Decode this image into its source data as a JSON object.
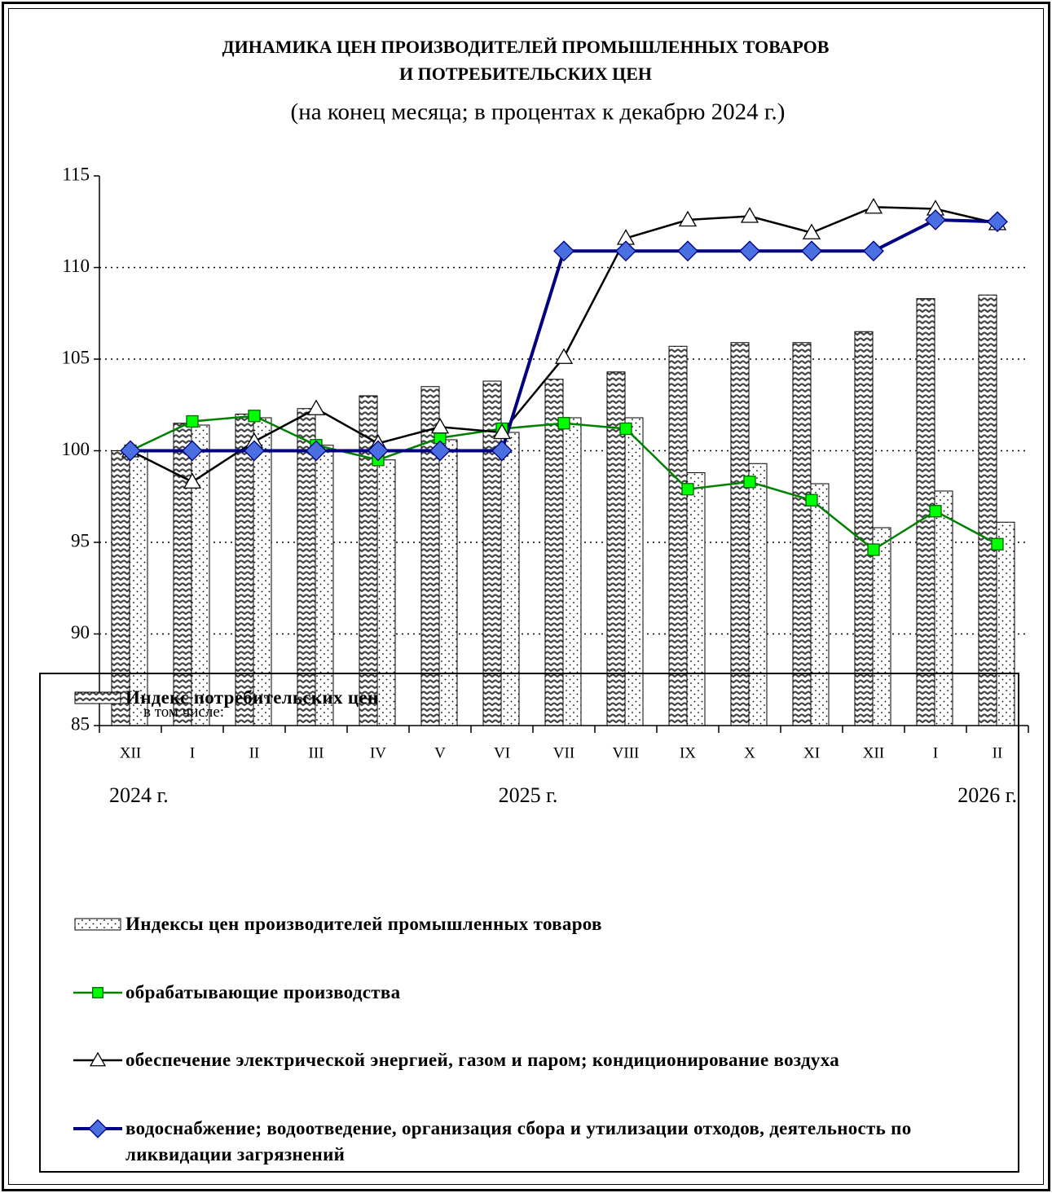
{
  "chart_data": {
    "type": "combo",
    "title": [
      "ДИНАМИКА  ЦЕН  ПРОИЗВОДИТЕЛЕЙ  ПРОМЫШЛЕННЫХ ТОВАРОВ",
      "И  ПОТРЕБИТЕЛЬСКИХ  ЦЕН"
    ],
    "subtitle": "(на конец месяца; в процентах к декабрю 2024 г.)",
    "categories": [
      "XII",
      "I",
      "II",
      "III",
      "IV",
      "V",
      "VI",
      "VII",
      "VIII",
      "IX",
      "X",
      "XI",
      "XII",
      "I",
      "II"
    ],
    "year_labels": [
      "2024 г.",
      "2025 г.",
      "2026 г."
    ],
    "legend_note": "в том числе:",
    "ylim": [
      85,
      115
    ],
    "yticks": [
      85,
      90,
      95,
      100,
      105,
      110,
      115
    ],
    "grid": true,
    "series": [
      {
        "name": "Индекс потребительских цен",
        "type": "bar",
        "pattern": "wave",
        "color": "#444444",
        "values": [
          100.0,
          101.5,
          102.0,
          102.3,
          103.0,
          103.5,
          103.8,
          103.9,
          104.3,
          105.7,
          105.9,
          105.9,
          106.5,
          108.3,
          108.5
        ]
      },
      {
        "name": "Индексы цен производителей промышленных товаров",
        "type": "bar",
        "pattern": "dots",
        "color": "#000000",
        "values": [
          100.0,
          101.4,
          101.8,
          100.3,
          99.5,
          100.6,
          101.0,
          101.8,
          101.8,
          98.8,
          99.3,
          98.2,
          95.8,
          97.8,
          96.1
        ]
      },
      {
        "name": "обрабатывающие производства",
        "type": "line",
        "marker": "square",
        "color": "#008000",
        "marker_color": "#00ff00",
        "values": [
          100.0,
          101.6,
          101.9,
          100.3,
          99.5,
          100.7,
          101.2,
          101.5,
          101.2,
          97.9,
          98.3,
          97.3,
          94.6,
          96.7,
          94.9
        ]
      },
      {
        "name": "обеспечение электрической энергией, газом и паром; кондиционирование воздуха",
        "type": "line",
        "marker": "triangle",
        "color": "#000000",
        "marker_color": "#ffffff",
        "values": [
          100.0,
          98.3,
          100.5,
          102.3,
          100.4,
          101.3,
          101.0,
          105.1,
          111.6,
          112.6,
          112.8,
          111.9,
          113.3,
          113.2,
          112.4
        ]
      },
      {
        "name": "водоснабжение; водоотведение, организация сбора и утилизации отходов, деятельность по ликвидации загрязнений",
        "type": "line",
        "marker": "diamond",
        "color": "#000080",
        "marker_color": "#4a6fe0",
        "values": [
          100.0,
          100.0,
          100.0,
          100.0,
          100.0,
          100.0,
          100.0,
          110.9,
          110.9,
          110.9,
          110.9,
          110.9,
          110.9,
          112.6,
          112.5
        ]
      }
    ]
  }
}
